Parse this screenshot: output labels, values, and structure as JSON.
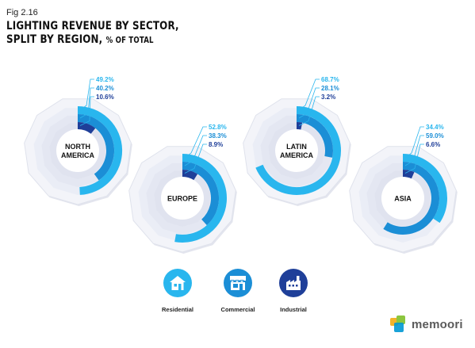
{
  "fig_label": "Fig 2.16",
  "title_line1": "LIGHTING REVENUE BY SECTOR,",
  "title_line2": "SPLIT BY REGION,",
  "title_unit": "% OF TOTAL",
  "colors": {
    "residential": "#29b6ee",
    "commercial": "#1b8ed6",
    "industrial": "#1f3f99",
    "ring_fill": "#eaedf6",
    "outer_fill": "#f3f4f9",
    "leader": "#29b6ee"
  },
  "chart_data": {
    "type": "radial-bar",
    "unit": "% of total",
    "categories": [
      "Residential",
      "Commercial",
      "Industrial"
    ],
    "regions": [
      {
        "label_lines": [
          "NORTH",
          "AMERICA"
        ],
        "values": [
          49.2,
          40.2,
          10.6
        ],
        "value_labels": [
          "49.2%",
          "40.2%",
          "10.6%"
        ]
      },
      {
        "label_lines": [
          "EUROPE"
        ],
        "values": [
          52.8,
          38.3,
          8.9
        ],
        "value_labels": [
          "52.8%",
          "38.3%",
          "8.9%"
        ]
      },
      {
        "label_lines": [
          "LATIN",
          "AMERICA"
        ],
        "values": [
          68.7,
          28.1,
          3.2
        ],
        "value_labels": [
          "68.7%",
          "28.1%",
          "3.2%"
        ]
      },
      {
        "label_lines": [
          "ASIA"
        ],
        "values": [
          34.4,
          59.0,
          6.6
        ],
        "value_labels": [
          "34.4%",
          "59.0%",
          "6.6%"
        ]
      }
    ]
  },
  "legend": [
    {
      "label": "Residential",
      "icon": "house-icon"
    },
    {
      "label": "Commercial",
      "icon": "storefront-icon"
    },
    {
      "label": "Industrial",
      "icon": "factory-icon"
    }
  ],
  "logo_text": "memoori"
}
